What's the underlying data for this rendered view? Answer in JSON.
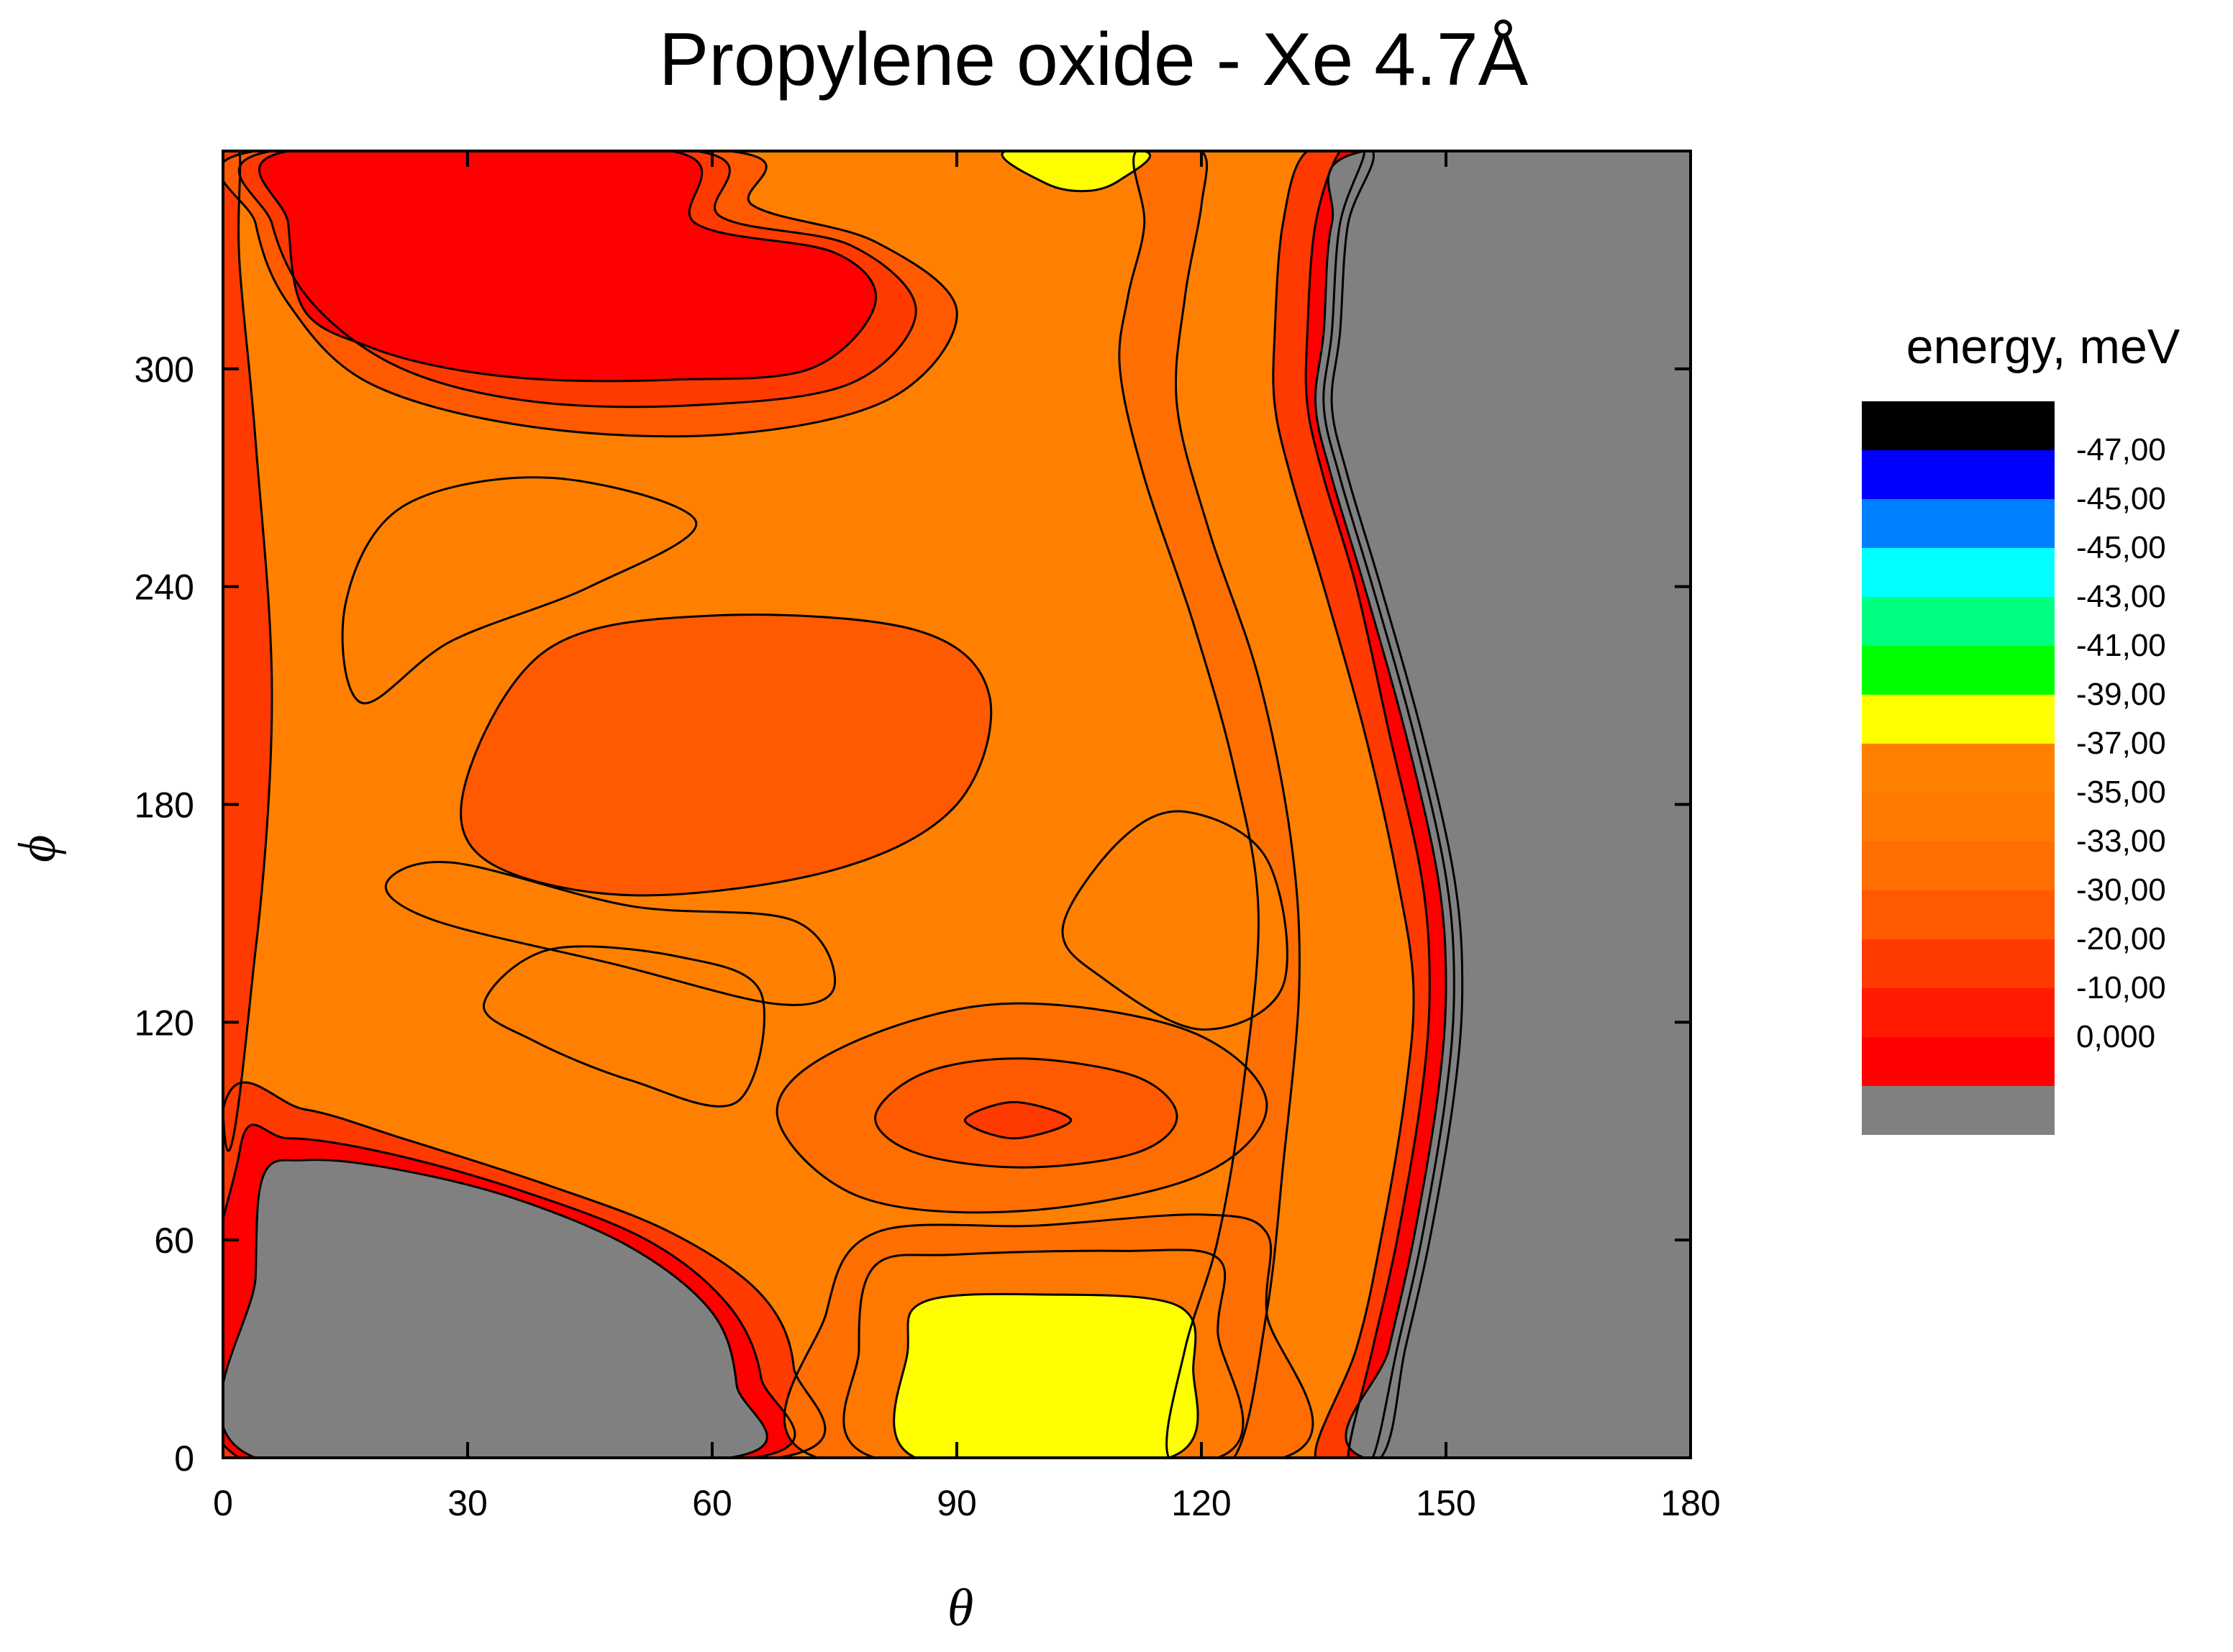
{
  "chart_data": {
    "type": "heatmap",
    "title": "Propylene oxide - Xe 4.7Å",
    "xlabel": "θ",
    "ylabel": "ϕ",
    "xlim": [
      0,
      180
    ],
    "ylim": [
      0,
      360
    ],
    "x_ticks": [
      0,
      30,
      60,
      90,
      120,
      150,
      180
    ],
    "y_ticks": [
      0,
      60,
      120,
      180,
      240,
      300
    ],
    "grid": false,
    "legend": {
      "title": "energy, meV",
      "placement": "right",
      "labels": [
        "-47,00",
        "-45,00",
        "-45,00",
        "-43,00",
        "-41,00",
        "-39,00",
        "-37,00",
        "-35,00",
        "-33,00",
        "-30,00",
        "-20,00",
        "-10,00",
        "0,000"
      ],
      "colors": [
        "#000000",
        "#0000ff",
        "#0080ff",
        "#00ffff",
        "#00ff80",
        "#00ff00",
        "#ffff00",
        "#ff8000",
        "#ff7800",
        "#ff6e00",
        "#ff5a00",
        "#ff3a00",
        "#ff1a00",
        "#ff0000",
        "#808080"
      ]
    },
    "regions": [
      {
        "region": "grey",
        "color": "#808080",
        "description_level": "above 0,000",
        "path_data": [
          [
            140,
            0
          ],
          [
            180,
            0
          ],
          [
            180,
            360
          ],
          [
            140,
            360
          ],
          [
            136,
            340
          ],
          [
            135,
            310
          ],
          [
            134,
            290
          ],
          [
            136,
            270
          ],
          [
            140,
            240
          ],
          [
            145,
            200
          ],
          [
            149,
            160
          ],
          [
            150,
            130
          ],
          [
            149,
            100
          ],
          [
            146,
            60
          ],
          [
            143,
            30
          ]
        ]
      },
      {
        "region": "grey-lower-left",
        "color": "#808080",
        "path_data": [
          [
            4,
            0
          ],
          [
            62,
            0
          ],
          [
            63,
            20
          ],
          [
            60,
            40
          ],
          [
            50,
            58
          ],
          [
            35,
            72
          ],
          [
            20,
            80
          ],
          [
            10,
            82
          ],
          [
            5,
            78
          ],
          [
            4,
            50
          ]
        ]
      },
      {
        "region": "red-max",
        "color": "#ff0000",
        "path_data": [
          [
            8,
            360
          ],
          [
            55,
            360
          ],
          [
            58,
            340
          ],
          [
            75,
            332
          ],
          [
            80,
            318
          ],
          [
            72,
            300
          ],
          [
            55,
            297
          ],
          [
            40,
            297
          ],
          [
            28,
            300
          ],
          [
            18,
            306
          ],
          [
            10,
            316
          ],
          [
            8,
            340
          ]
        ]
      },
      {
        "region": "yellow-top",
        "color": "#ffff00",
        "path_data": [
          [
            96,
            360
          ],
          [
            113,
            360
          ],
          [
            110,
            352
          ],
          [
            106,
            349
          ],
          [
            101,
            351
          ]
        ]
      },
      {
        "region": "yellow-bottom",
        "color": "#ffff00",
        "path_data": [
          [
            85,
            0
          ],
          [
            116,
            0
          ],
          [
            119,
            25
          ],
          [
            117,
            42
          ],
          [
            100,
            45
          ],
          [
            86,
            43
          ],
          [
            84,
            30
          ]
        ]
      },
      {
        "region": "center-low",
        "color": "#ff5a00",
        "path_data": [
          [
            30,
            188
          ],
          [
            40,
            223
          ],
          [
            60,
            232
          ],
          [
            85,
            228
          ],
          [
            94,
            210
          ],
          [
            90,
            180
          ],
          [
            75,
            162
          ],
          [
            50,
            155
          ],
          [
            32,
            165
          ]
        ]
      },
      {
        "region": "center-dot",
        "color": "#ff3a00",
        "path_data": [
          [
            91,
            93
          ],
          [
            97,
            98
          ],
          [
            104,
            93
          ],
          [
            97,
            88
          ]
        ]
      }
    ]
  }
}
